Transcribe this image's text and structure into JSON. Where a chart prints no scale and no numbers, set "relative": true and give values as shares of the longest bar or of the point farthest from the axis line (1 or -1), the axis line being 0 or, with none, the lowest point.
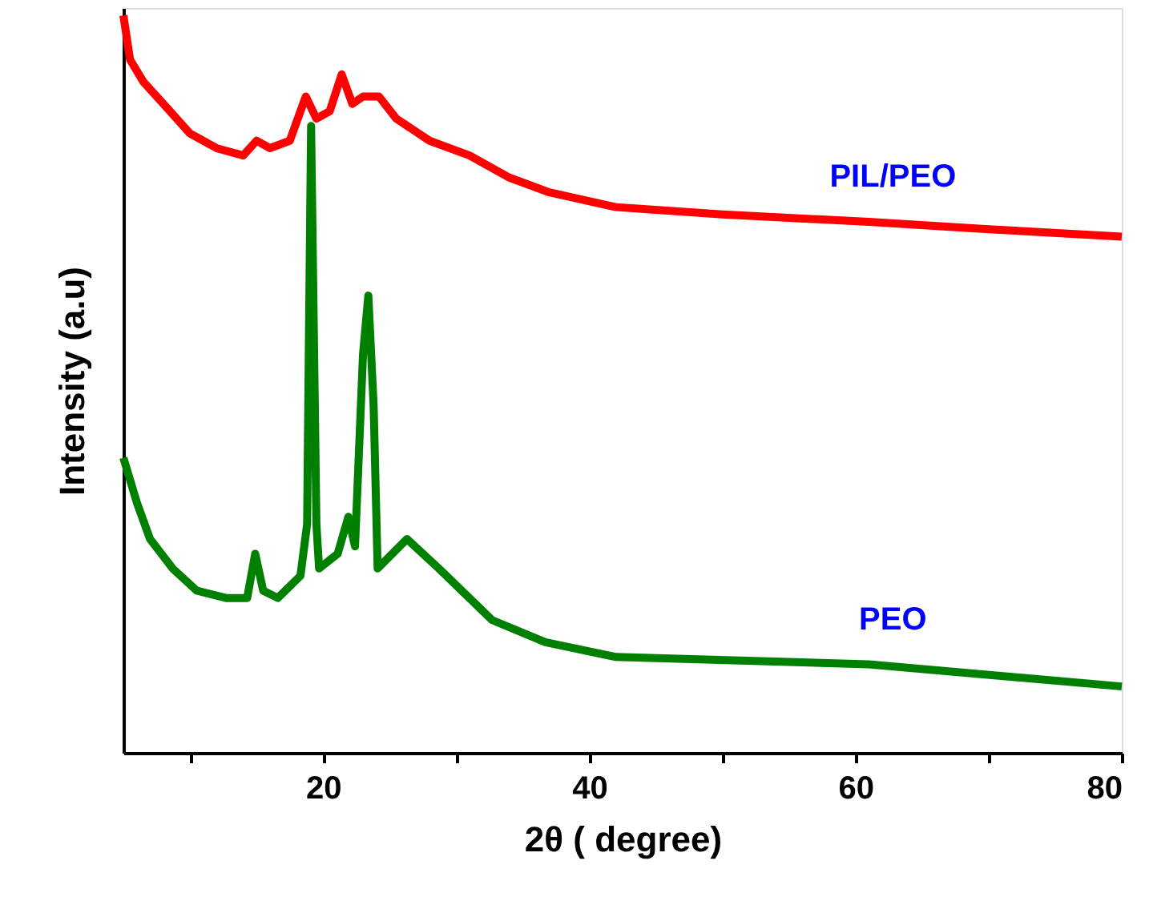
{
  "chart_data": {
    "type": "line",
    "relative": true,
    "xlabel": "2θ ( degree)",
    "ylabel": "Intensity (a.u)",
    "xlim": [
      5,
      80
    ],
    "xticks": [
      {
        "value": 10,
        "label": null
      },
      20,
      {
        "value": 30,
        "label": null
      },
      40,
      {
        "value": 50,
        "label": null
      },
      60,
      {
        "value": 70,
        "label": null
      },
      80
    ],
    "marker": "none",
    "line_style": "solid",
    "series": [
      {
        "name": "PIL/PEO",
        "color": "#ff0000",
        "x": [
          5,
          5.5,
          6.5,
          8,
          10,
          12,
          14,
          15,
          16,
          17.5,
          18.7,
          19.5,
          20.5,
          21.4,
          22.2,
          23,
          24.2,
          25.5,
          28,
          31,
          34,
          37,
          42,
          50,
          61,
          70,
          80
        ],
        "values": [
          1.0,
          0.94,
          0.91,
          0.88,
          0.84,
          0.82,
          0.81,
          0.83,
          0.82,
          0.83,
          0.89,
          0.86,
          0.87,
          0.92,
          0.88,
          0.89,
          0.89,
          0.86,
          0.83,
          0.81,
          0.78,
          0.76,
          0.74,
          0.73,
          0.72,
          0.71,
          0.7
        ]
      },
      {
        "name": "PEO",
        "color": "#008000",
        "x": [
          5,
          6,
          7,
          8.7,
          10.5,
          12.7,
          14.3,
          14.9,
          15.5,
          16.6,
          18.3,
          18.8,
          19.1,
          19.5,
          19.7,
          21.1,
          21.9,
          22.4,
          23.0,
          23.4,
          23.8,
          24.1,
          26.3,
          28.7,
          32.7,
          36.7,
          42,
          61,
          80
        ],
        "values": [
          0.4,
          0.34,
          0.29,
          0.25,
          0.22,
          0.21,
          0.21,
          0.27,
          0.22,
          0.21,
          0.24,
          0.31,
          0.85,
          0.31,
          0.25,
          0.27,
          0.32,
          0.28,
          0.54,
          0.62,
          0.47,
          0.25,
          0.29,
          0.25,
          0.18,
          0.15,
          0.13,
          0.12,
          0.09
        ]
      }
    ]
  }
}
